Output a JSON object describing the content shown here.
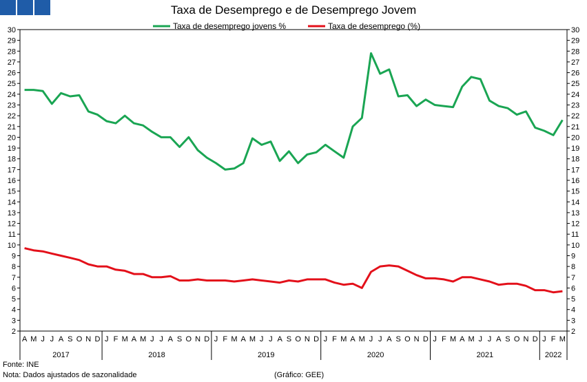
{
  "title": "Taxa de Desemprego e de Desemprego Jovem",
  "footer": {
    "source": "Fonte: INE",
    "note": "Nota: Dados ajustados de sazonalidade",
    "credit": "(Gráfico: GEE)"
  },
  "colors": {
    "brand": "#1f5ca8",
    "youth": "#1aa553",
    "total": "#e3101a",
    "axis": "#000000"
  },
  "chart_data": {
    "type": "line",
    "title": "Taxa de Desemprego e de Desemprego Jovem",
    "ylim": [
      2,
      30
    ],
    "yticks": [
      2,
      3,
      4,
      5,
      6,
      7,
      8,
      9,
      10,
      11,
      12,
      13,
      14,
      15,
      16,
      17,
      18,
      19,
      20,
      21,
      22,
      23,
      24,
      25,
      26,
      27,
      28,
      29,
      30
    ],
    "y2ticks": [
      2,
      3,
      4,
      5,
      6,
      7,
      8,
      9,
      10,
      11,
      12,
      13,
      14,
      15,
      16,
      17,
      18,
      19,
      20,
      21,
      22,
      23,
      24,
      25,
      26,
      27,
      28,
      29,
      30
    ],
    "grid": false,
    "legend": "top-center",
    "months": [
      "A",
      "M",
      "J",
      "J",
      "A",
      "S",
      "O",
      "N",
      "D",
      "J",
      "F",
      "M",
      "A",
      "M",
      "J",
      "J",
      "A",
      "S",
      "O",
      "N",
      "D",
      "J",
      "F",
      "M",
      "A",
      "M",
      "J",
      "J",
      "A",
      "S",
      "O",
      "N",
      "D",
      "J",
      "F",
      "M",
      "A",
      "M",
      "J",
      "J",
      "A",
      "S",
      "O",
      "N",
      "D",
      "J",
      "F",
      "M",
      "A",
      "M",
      "J",
      "J",
      "A",
      "S",
      "O",
      "N",
      "D",
      "J",
      "F",
      "M"
    ],
    "x": [
      "2017-04",
      "2017-05",
      "2017-06",
      "2017-07",
      "2017-08",
      "2017-09",
      "2017-10",
      "2017-11",
      "2017-12",
      "2018-01",
      "2018-02",
      "2018-03",
      "2018-04",
      "2018-05",
      "2018-06",
      "2018-07",
      "2018-08",
      "2018-09",
      "2018-10",
      "2018-11",
      "2018-12",
      "2019-01",
      "2019-02",
      "2019-03",
      "2019-04",
      "2019-05",
      "2019-06",
      "2019-07",
      "2019-08",
      "2019-09",
      "2019-10",
      "2019-11",
      "2019-12",
      "2020-01",
      "2020-02",
      "2020-03",
      "2020-04",
      "2020-05",
      "2020-06",
      "2020-07",
      "2020-08",
      "2020-09",
      "2020-10",
      "2020-11",
      "2020-12",
      "2021-01",
      "2021-02",
      "2021-03",
      "2021-04",
      "2021-05",
      "2021-06",
      "2021-07",
      "2021-08",
      "2021-09",
      "2021-10",
      "2021-11",
      "2021-12",
      "2022-01",
      "2022-02",
      "2022-03"
    ],
    "years": [
      {
        "label": "2017",
        "start": 0,
        "count": 9
      },
      {
        "label": "2018",
        "start": 9,
        "count": 12
      },
      {
        "label": "2019",
        "start": 21,
        "count": 12
      },
      {
        "label": "2020",
        "start": 33,
        "count": 12
      },
      {
        "label": "2021",
        "start": 45,
        "count": 12
      },
      {
        "label": "2022",
        "start": 57,
        "count": 3
      }
    ],
    "series": [
      {
        "name": "Taxa de desemprego jovens %",
        "color": "#1aa553",
        "values": [
          24.4,
          24.4,
          24.3,
          23.1,
          24.1,
          23.8,
          23.9,
          22.4,
          22.1,
          21.5,
          21.3,
          22.0,
          21.3,
          21.1,
          20.5,
          20.0,
          20.0,
          19.1,
          20.0,
          18.8,
          18.1,
          17.6,
          17.0,
          17.1,
          17.6,
          19.9,
          19.3,
          19.6,
          17.8,
          18.7,
          17.6,
          18.4,
          18.6,
          19.3,
          18.7,
          18.1,
          21.0,
          21.8,
          27.8,
          25.9,
          26.3,
          23.8,
          23.9,
          22.9,
          23.5,
          23.0,
          22.9,
          22.8,
          24.7,
          25.6,
          25.4,
          23.4,
          22.9,
          22.7,
          22.1,
          22.4,
          20.9,
          20.6,
          20.2,
          21.6
        ]
      },
      {
        "name": "Taxa de desemprego (%)",
        "color": "#e3101a",
        "values": [
          9.7,
          9.5,
          9.4,
          9.2,
          9.0,
          8.8,
          8.6,
          8.2,
          8.0,
          8.0,
          7.7,
          7.6,
          7.3,
          7.3,
          7.0,
          7.0,
          7.1,
          6.7,
          6.7,
          6.8,
          6.7,
          6.7,
          6.7,
          6.6,
          6.7,
          6.8,
          6.7,
          6.6,
          6.5,
          6.7,
          6.6,
          6.8,
          6.8,
          6.8,
          6.5,
          6.3,
          6.4,
          6.0,
          7.5,
          8.0,
          8.1,
          8.0,
          7.6,
          7.2,
          6.9,
          6.9,
          6.8,
          6.6,
          7.0,
          7.0,
          6.8,
          6.6,
          6.3,
          6.4,
          6.4,
          6.2,
          5.8,
          5.8,
          5.6,
          5.7
        ]
      }
    ]
  }
}
